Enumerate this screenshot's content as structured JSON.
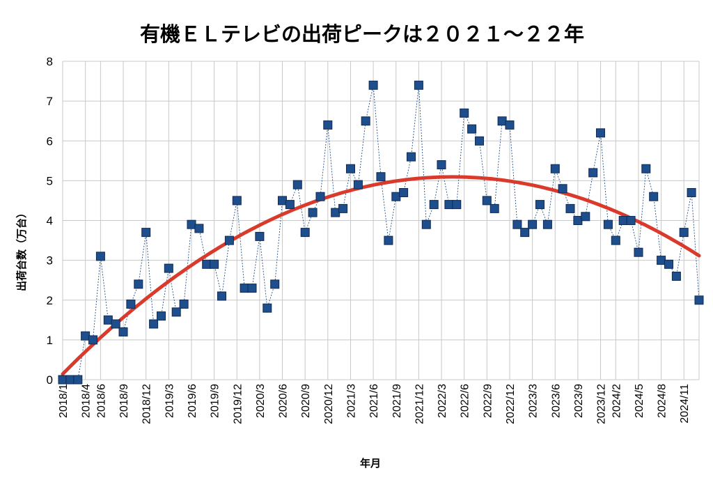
{
  "chart_data": {
    "type": "scatter",
    "title": "有機ＥＬテレビの出荷ピークは２０２１～２２年",
    "xlabel": "年月",
    "ylabel": "出荷台数（万台）",
    "ylim": [
      0,
      8
    ],
    "yticks": [
      0,
      1,
      2,
      3,
      4,
      5,
      6,
      7,
      8
    ],
    "grid": true,
    "x_tick_labels": [
      "2018/1",
      "2018/4",
      "2018/6",
      "2018/9",
      "2018/12",
      "2019/3",
      "2019/6",
      "2019/9",
      "2019/12",
      "2020/3",
      "2020/6",
      "2020/9",
      "2020/12",
      "2021/3",
      "2021/6",
      "2021/9",
      "2021/12",
      "2022/3",
      "2022/6",
      "2022/9",
      "2022/12",
      "2023/3",
      "2023/6",
      "2023/9",
      "2023/12",
      "2024/2",
      "2024/5",
      "2024/8",
      "2024/11"
    ],
    "series": [
      {
        "type": "scatter-line",
        "color": "#1f4e8c",
        "values": [
          0,
          0,
          0,
          1.1,
          1.0,
          3.1,
          1.5,
          1.4,
          1.2,
          1.9,
          2.4,
          3.7,
          1.4,
          1.6,
          2.8,
          1.7,
          1.9,
          3.9,
          3.8,
          2.9,
          2.9,
          2.1,
          3.5,
          4.5,
          2.3,
          2.3,
          3.6,
          1.8,
          2.4,
          4.5,
          4.4,
          4.9,
          3.7,
          4.2,
          4.6,
          6.4,
          4.2,
          4.3,
          5.3,
          4.9,
          6.5,
          7.4,
          5.1,
          3.5,
          4.6,
          4.7,
          5.6,
          7.4,
          3.9,
          4.4,
          5.4,
          4.4,
          4.4,
          6.7,
          6.3,
          6.0,
          4.5,
          4.3,
          6.5,
          6.4,
          3.9,
          3.7,
          3.9,
          4.4,
          3.9,
          5.3,
          4.8,
          4.3,
          4.0,
          4.1,
          5.2,
          6.2,
          3.9,
          3.5,
          4.0,
          4.0,
          3.2,
          5.3,
          4.6,
          3.0,
          2.9,
          2.6,
          3.7,
          4.7,
          2.0
        ]
      },
      {
        "type": "trendline",
        "color": "#d93a2b",
        "polynomial_order": 2
      }
    ]
  }
}
